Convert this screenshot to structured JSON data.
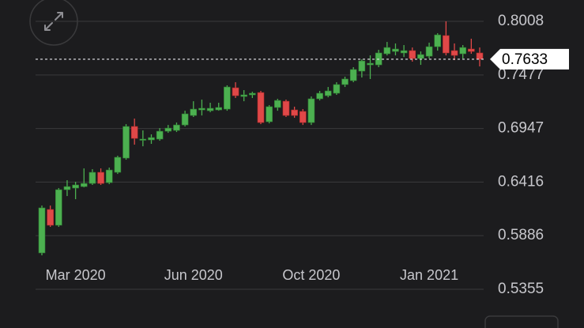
{
  "chart_data": {
    "type": "candlestick",
    "categories": [
      null,
      null,
      null,
      null,
      "Mar 2020",
      null,
      null,
      null,
      null,
      null,
      null,
      null,
      null,
      null,
      null,
      null,
      null,
      null,
      "Jun 2020",
      null,
      null,
      null,
      null,
      null,
      null,
      null,
      null,
      null,
      null,
      null,
      null,
      null,
      "Oct 2020",
      null,
      null,
      null,
      null,
      null,
      null,
      null,
      null,
      null,
      null,
      null,
      null,
      null,
      "Jan 2021",
      null,
      null,
      null,
      null,
      null,
      null
    ],
    "open": [
      0.5715,
      0.6145,
      0.5989,
      0.6341,
      0.6357,
      0.6372,
      0.6403,
      0.6513,
      0.6411,
      0.6513,
      0.6654,
      0.6967,
      0.6834,
      0.6834,
      0.6842,
      0.692,
      0.6928,
      0.6982,
      0.7076,
      0.7131,
      0.7123,
      0.7131,
      0.7139,
      0.735,
      0.7264,
      0.728,
      0.7303,
      0.7014,
      0.7155,
      0.7217,
      0.7131,
      0.7116,
      0.7006,
      0.7241,
      0.7272,
      0.7296,
      0.7382,
      0.7421,
      0.7515,
      0.7577,
      0.7577,
      0.7687,
      0.771,
      0.7695,
      0.7718,
      0.764,
      0.7663,
      0.7757,
      0.7867,
      0.7718,
      0.7687,
      0.7734,
      0.7695
    ],
    "high": [
      0.6184,
      0.6184,
      0.6357,
      0.6435,
      0.6419,
      0.6552,
      0.6544,
      0.6552,
      0.656,
      0.6677,
      0.699,
      0.7045,
      0.6928,
      0.6889,
      0.6951,
      0.6982,
      0.7006,
      0.7123,
      0.7217,
      0.7233,
      0.7202,
      0.7202,
      0.7374,
      0.7405,
      0.7327,
      0.7311,
      0.7319,
      0.7178,
      0.7241,
      0.7233,
      0.7163,
      0.7139,
      0.7264,
      0.7319,
      0.7358,
      0.7405,
      0.746,
      0.7554,
      0.7632,
      0.7671,
      0.7726,
      0.7804,
      0.7789,
      0.7773,
      0.7749,
      0.771,
      0.7797,
      0.789,
      0.8008,
      0.7789,
      0.7773,
      0.7836,
      0.7749
    ],
    "low": [
      0.5691,
      0.5973,
      0.5973,
      0.6278,
      0.6247,
      0.6364,
      0.6388,
      0.6388,
      0.6396,
      0.6497,
      0.6638,
      0.6787,
      0.6771,
      0.6795,
      0.6826,
      0.6904,
      0.6912,
      0.6967,
      0.7061,
      0.7076,
      0.7108,
      0.7123,
      0.7123,
      0.7249,
      0.7217,
      0.7249,
      0.699,
      0.6998,
      0.7123,
      0.7061,
      0.7053,
      0.6982,
      0.6982,
      0.7225,
      0.7256,
      0.728,
      0.7358,
      0.7405,
      0.7452,
      0.7437,
      0.7554,
      0.7671,
      0.7671,
      0.7656,
      0.7609,
      0.7577,
      0.764,
      0.7718,
      0.7671,
      0.7624,
      0.764,
      0.7687,
      0.7562
    ],
    "close": [
      0.6161,
      0.5989,
      0.6341,
      0.6372,
      0.6388,
      0.6403,
      0.6513,
      0.6403,
      0.6536,
      0.6662,
      0.6967,
      0.6849,
      0.6842,
      0.6857,
      0.692,
      0.6951,
      0.6982,
      0.7092,
      0.7139,
      0.7147,
      0.7147,
      0.7155,
      0.7358,
      0.7272,
      0.728,
      0.7296,
      0.7006,
      0.7163,
      0.7225,
      0.7076,
      0.7076,
      0.7006,
      0.7241,
      0.7296,
      0.7319,
      0.7382,
      0.7437,
      0.7531,
      0.7616,
      0.7593,
      0.7695,
      0.7749,
      0.7734,
      0.7718,
      0.764,
      0.7679,
      0.7757,
      0.7874,
      0.7695,
      0.7671,
      0.7749,
      0.771,
      0.7633
    ],
    "up_color": "#4cb050",
    "down_color": "#e04848",
    "ylim": [
      0.5355,
      0.8008
    ],
    "yticks": [
      0.5355,
      0.5886,
      0.6416,
      0.6947,
      0.7477,
      0.8008
    ],
    "last_price": 0.7633,
    "grid": true
  }
}
